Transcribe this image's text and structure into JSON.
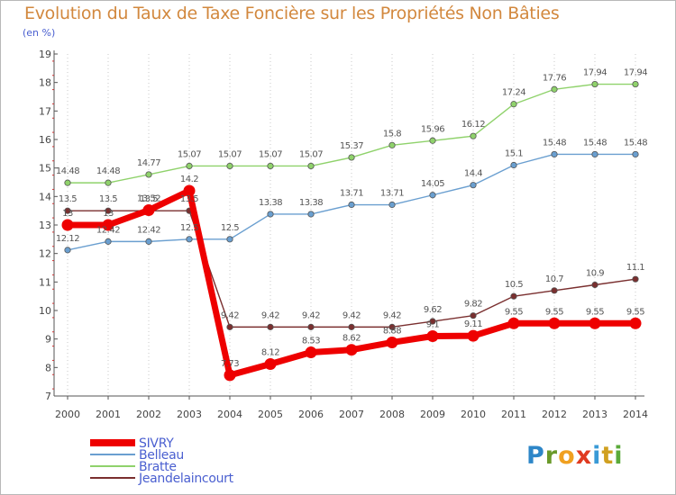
{
  "title": "Evolution du Taux de Taxe Foncière sur les Propriétés Non Bâties",
  "unit_label": "(en %)",
  "logo": {
    "letters": [
      "P",
      "r",
      "o",
      "x",
      "i",
      "t",
      "i"
    ]
  },
  "chart_data": {
    "type": "line",
    "title": "Evolution du Taux de Taxe Foncière sur les Propriétés Non Bâties",
    "ylabel": "(en %)",
    "xlabel": "",
    "ylim": [
      7,
      19
    ],
    "yticks": [
      "7",
      "8",
      "9",
      "10",
      "11",
      "12",
      "13",
      "14",
      "15",
      "16",
      "17",
      "18",
      "19"
    ],
    "categories": [
      "2000",
      "2001",
      "2002",
      "2003",
      "2004",
      "2005",
      "2006",
      "2007",
      "2008",
      "2009",
      "2010",
      "2011",
      "2012",
      "2013",
      "2014"
    ],
    "grid": "vertical-dotted",
    "legend_position": "bottom-left",
    "series": [
      {
        "name": "Belleau",
        "color": "#6a9fd0",
        "values": [
          12.12,
          12.42,
          12.42,
          12.5,
          12.5,
          13.38,
          13.38,
          13.71,
          13.71,
          14.05,
          14.4,
          15.1,
          15.48,
          15.48,
          15.48
        ],
        "labels": [
          "12.12",
          "12.42",
          "12.42",
          "12.5",
          "12.5",
          "13.38",
          "13.38",
          "13.71",
          "13.71",
          "14.05",
          "14.4",
          "15.1",
          "15.48",
          "15.48",
          "15.48"
        ]
      },
      {
        "name": "Bratte",
        "color": "#8fd26b",
        "values": [
          14.48,
          14.48,
          14.77,
          15.07,
          15.07,
          15.07,
          15.07,
          15.37,
          15.8,
          15.96,
          16.12,
          17.24,
          17.76,
          17.94,
          17.94
        ],
        "labels": [
          "14.48",
          "14.48",
          "14.77",
          "15.07",
          "15.07",
          "15.07",
          "15.07",
          "15.37",
          "15.8",
          "15.96",
          "16.12",
          "17.24",
          "17.76",
          "17.94",
          "17.94"
        ]
      },
      {
        "name": "Jeandelaincourt",
        "color": "#7a2f2f",
        "values": [
          13.5,
          13.5,
          13.5,
          13.5,
          9.42,
          9.42,
          9.42,
          9.42,
          9.42,
          9.62,
          9.82,
          10.5,
          10.7,
          10.9,
          11.1
        ],
        "labels": [
          "13.5",
          "13.5",
          "13.5",
          "13.5",
          "9.42",
          "9.42",
          "9.42",
          "9.42",
          "9.42",
          "9.62",
          "9.82",
          "10.5",
          "10.7",
          "10.9",
          "11.1"
        ]
      },
      {
        "name": "SIVRY",
        "color": "#ee0000",
        "values": [
          13,
          13,
          13.52,
          14.2,
          7.73,
          8.12,
          8.53,
          8.62,
          8.88,
          9.1,
          9.11,
          9.55,
          9.55,
          9.55,
          9.55
        ],
        "labels": [
          "13",
          "13",
          "13.52",
          "14.2",
          "7.73",
          "8.12",
          "8.53",
          "8.62",
          "8.88",
          "9.1",
          "9.11",
          "9.55",
          "9.55",
          "9.55",
          "9.55"
        ]
      }
    ],
    "legend_order": [
      "SIVRY",
      "Belleau",
      "Bratte",
      "Jeandelaincourt"
    ]
  }
}
